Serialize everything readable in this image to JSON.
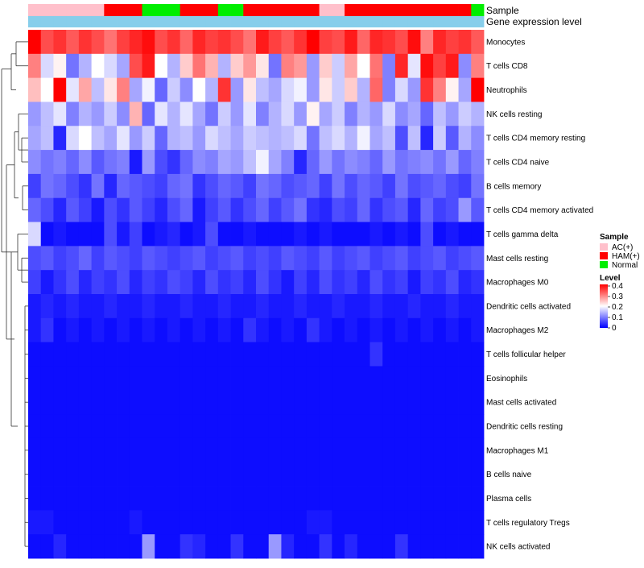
{
  "chart_data": {
    "type": "heatmap",
    "title": "",
    "annotation_tracks": [
      "Sample",
      "Gene expression level"
    ],
    "sample_groups": [
      "AC",
      "AC",
      "AC",
      "AC",
      "AC",
      "AC",
      "HAM",
      "HAM",
      "HAM",
      "Normal",
      "Normal",
      "Normal",
      "HAM",
      "HAM",
      "HAM",
      "Normal",
      "Normal",
      "HAM",
      "HAM",
      "HAM",
      "HAM",
      "HAM",
      "HAM",
      "AC",
      "AC",
      "HAM",
      "HAM",
      "HAM",
      "HAM",
      "HAM",
      "HAM",
      "HAM",
      "HAM",
      "HAM",
      "HAM",
      "Normal"
    ],
    "rows": [
      "Monocytes",
      "T cells CD8",
      "Neutrophils",
      "NK cells resting",
      "T cells CD4 memory resting",
      "T cells CD4 naive",
      "B cells memory",
      "T cells CD4 memory activated",
      "T cells gamma delta",
      "Mast cells resting",
      "Macrophages M0",
      "Dendritic cells activated",
      "Macrophages M2",
      "T cells follicular helper",
      "Eosinophils",
      "Mast cells activated",
      "Dendritic cells resting",
      "Macrophages M1",
      "B cells naive",
      "Plasma cells",
      "T cells regulatory  Tregs",
      "NK cells activated"
    ],
    "values": [
      [
        0.4,
        0.34,
        0.36,
        0.33,
        0.36,
        0.34,
        0.31,
        0.35,
        0.37,
        0.39,
        0.34,
        0.36,
        0.32,
        0.37,
        0.35,
        0.36,
        0.34,
        0.31,
        0.38,
        0.35,
        0.33,
        0.36,
        0.4,
        0.35,
        0.34,
        0.38,
        0.32,
        0.37,
        0.36,
        0.34,
        0.39,
        0.3,
        0.37,
        0.35,
        0.36,
        0.33
      ],
      [
        0.3,
        0.17,
        0.21,
        0.09,
        0.14,
        0.2,
        0.17,
        0.13,
        0.34,
        0.38,
        0.2,
        0.14,
        0.24,
        0.31,
        0.26,
        0.14,
        0.24,
        0.28,
        0.22,
        0.09,
        0.3,
        0.28,
        0.12,
        0.24,
        0.16,
        0.27,
        0.2,
        0.31,
        0.1,
        0.37,
        0.18,
        0.39,
        0.35,
        0.38,
        0.11,
        0.3
      ],
      [
        0.25,
        0.2,
        0.4,
        0.18,
        0.27,
        0.15,
        0.22,
        0.3,
        0.13,
        0.19,
        0.08,
        0.16,
        0.11,
        0.2,
        0.14,
        0.36,
        0.12,
        0.22,
        0.15,
        0.13,
        0.17,
        0.19,
        0.12,
        0.22,
        0.16,
        0.24,
        0.14,
        0.32,
        0.1,
        0.17,
        0.12,
        0.36,
        0.3,
        0.21,
        0.13,
        0.4
      ],
      [
        0.12,
        0.15,
        0.18,
        0.1,
        0.14,
        0.12,
        0.16,
        0.11,
        0.26,
        0.08,
        0.18,
        0.14,
        0.18,
        0.13,
        0.09,
        0.16,
        0.12,
        0.18,
        0.1,
        0.14,
        0.17,
        0.12,
        0.21,
        0.13,
        0.16,
        0.1,
        0.14,
        0.12,
        0.17,
        0.11,
        0.13,
        0.08,
        0.15,
        0.12,
        0.16,
        0.14
      ],
      [
        0.13,
        0.15,
        0.03,
        0.17,
        0.2,
        0.15,
        0.13,
        0.18,
        0.12,
        0.16,
        0.08,
        0.14,
        0.15,
        0.12,
        0.17,
        0.15,
        0.13,
        0.16,
        0.15,
        0.14,
        0.15,
        0.17,
        0.09,
        0.15,
        0.17,
        0.14,
        0.19,
        0.13,
        0.15,
        0.06,
        0.15,
        0.03,
        0.16,
        0.07,
        0.14,
        0.11
      ],
      [
        0.11,
        0.09,
        0.1,
        0.08,
        0.11,
        0.07,
        0.09,
        0.1,
        0.02,
        0.12,
        0.06,
        0.04,
        0.08,
        0.11,
        0.1,
        0.13,
        0.12,
        0.15,
        0.19,
        0.13,
        0.1,
        0.03,
        0.08,
        0.12,
        0.09,
        0.11,
        0.1,
        0.08,
        0.12,
        0.09,
        0.1,
        0.11,
        0.09,
        0.12,
        0.08,
        0.1
      ],
      [
        0.05,
        0.09,
        0.08,
        0.06,
        0.04,
        0.09,
        0.03,
        0.08,
        0.07,
        0.06,
        0.05,
        0.08,
        0.09,
        0.04,
        0.06,
        0.08,
        0.07,
        0.05,
        0.09,
        0.08,
        0.06,
        0.07,
        0.08,
        0.05,
        0.09,
        0.06,
        0.08,
        0.07,
        0.05,
        0.09,
        0.06,
        0.07,
        0.08,
        0.06,
        0.05,
        0.09
      ],
      [
        0.08,
        0.06,
        0.03,
        0.07,
        0.05,
        0.02,
        0.06,
        0.04,
        0.07,
        0.05,
        0.03,
        0.06,
        0.08,
        0.02,
        0.05,
        0.07,
        0.04,
        0.06,
        0.08,
        0.05,
        0.07,
        0.09,
        0.04,
        0.03,
        0.06,
        0.05,
        0.08,
        0.04,
        0.06,
        0.07,
        0.03,
        0.08,
        0.05,
        0.06,
        0.12,
        0.07
      ],
      [
        0.17,
        0.01,
        0.02,
        0.01,
        0.01,
        0.01,
        0.06,
        0.02,
        0.05,
        0.01,
        0.02,
        0.03,
        0.01,
        0.02,
        0.06,
        0.01,
        0.01,
        0.02,
        0.01,
        0.01,
        0.01,
        0.02,
        0.01,
        0.02,
        0.01,
        0.01,
        0.01,
        0.02,
        0.01,
        0.02,
        0.01,
        0.06,
        0.01,
        0.02,
        0.01,
        0.01
      ],
      [
        0.06,
        0.07,
        0.05,
        0.06,
        0.08,
        0.05,
        0.07,
        0.06,
        0.05,
        0.07,
        0.06,
        0.05,
        0.06,
        0.07,
        0.05,
        0.06,
        0.07,
        0.05,
        0.06,
        0.05,
        0.07,
        0.06,
        0.05,
        0.07,
        0.05,
        0.06,
        0.07,
        0.05,
        0.06,
        0.07,
        0.05,
        0.06,
        0.07,
        0.05,
        0.06,
        0.07
      ],
      [
        0.05,
        0.02,
        0.04,
        0.06,
        0.03,
        0.05,
        0.04,
        0.06,
        0.03,
        0.05,
        0.04,
        0.06,
        0.05,
        0.03,
        0.06,
        0.04,
        0.05,
        0.03,
        0.06,
        0.04,
        0.02,
        0.05,
        0.03,
        0.06,
        0.04,
        0.05,
        0.03,
        0.06,
        0.04,
        0.05,
        0.02,
        0.05,
        0.04,
        0.06,
        0.03,
        0.04
      ],
      [
        0.02,
        0.03,
        0.02,
        0.03,
        0.02,
        0.02,
        0.03,
        0.02,
        0.02,
        0.03,
        0.02,
        0.02,
        0.03,
        0.02,
        0.02,
        0.03,
        0.02,
        0.02,
        0.03,
        0.02,
        0.02,
        0.03,
        0.02,
        0.02,
        0.03,
        0.02,
        0.02,
        0.03,
        0.02,
        0.02,
        0.03,
        0.02,
        0.02,
        0.03,
        0.02,
        0.02
      ],
      [
        0.02,
        0.04,
        0.01,
        0.02,
        0.01,
        0.02,
        0.01,
        0.02,
        0.01,
        0.02,
        0.01,
        0.02,
        0.01,
        0.02,
        0.01,
        0.02,
        0.01,
        0.04,
        0.02,
        0.01,
        0.02,
        0.01,
        0.04,
        0.02,
        0.01,
        0.02,
        0.01,
        0.02,
        0.01,
        0.02,
        0.01,
        0.02,
        0.01,
        0.02,
        0.01,
        0.02
      ],
      [
        0.01,
        0.01,
        0.01,
        0.01,
        0.01,
        0.01,
        0.01,
        0.01,
        0.01,
        0.01,
        0.01,
        0.01,
        0.01,
        0.01,
        0.01,
        0.01,
        0.01,
        0.01,
        0.01,
        0.01,
        0.01,
        0.01,
        0.01,
        0.01,
        0.01,
        0.01,
        0.01,
        0.04,
        0.01,
        0.01,
        0.01,
        0.01,
        0.01,
        0.01,
        0.01,
        0.01
      ],
      [
        0.01,
        0.01,
        0.01,
        0.01,
        0.01,
        0.01,
        0.01,
        0.01,
        0.01,
        0.01,
        0.01,
        0.01,
        0.01,
        0.01,
        0.01,
        0.01,
        0.01,
        0.01,
        0.01,
        0.01,
        0.01,
        0.01,
        0.01,
        0.01,
        0.01,
        0.01,
        0.01,
        0.01,
        0.01,
        0.01,
        0.01,
        0.01,
        0.01,
        0.01,
        0.01,
        0.01
      ],
      [
        0.01,
        0.01,
        0.01,
        0.01,
        0.01,
        0.01,
        0.01,
        0.01,
        0.01,
        0.01,
        0.01,
        0.01,
        0.01,
        0.01,
        0.01,
        0.01,
        0.01,
        0.01,
        0.01,
        0.01,
        0.01,
        0.01,
        0.01,
        0.01,
        0.01,
        0.01,
        0.01,
        0.01,
        0.01,
        0.01,
        0.01,
        0.01,
        0.01,
        0.01,
        0.01,
        0.01
      ],
      [
        0.01,
        0.01,
        0.01,
        0.01,
        0.01,
        0.01,
        0.01,
        0.01,
        0.01,
        0.01,
        0.01,
        0.01,
        0.01,
        0.01,
        0.01,
        0.01,
        0.01,
        0.01,
        0.01,
        0.01,
        0.01,
        0.01,
        0.01,
        0.01,
        0.01,
        0.01,
        0.01,
        0.01,
        0.01,
        0.01,
        0.01,
        0.01,
        0.01,
        0.01,
        0.01,
        0.01
      ],
      [
        0.01,
        0.01,
        0.01,
        0.01,
        0.01,
        0.01,
        0.01,
        0.01,
        0.01,
        0.01,
        0.01,
        0.01,
        0.01,
        0.01,
        0.01,
        0.01,
        0.01,
        0.01,
        0.01,
        0.01,
        0.01,
        0.01,
        0.01,
        0.01,
        0.01,
        0.01,
        0.01,
        0.01,
        0.01,
        0.01,
        0.01,
        0.01,
        0.01,
        0.01,
        0.01,
        0.01
      ],
      [
        0.01,
        0.01,
        0.01,
        0.01,
        0.01,
        0.01,
        0.01,
        0.01,
        0.01,
        0.01,
        0.01,
        0.01,
        0.01,
        0.01,
        0.01,
        0.01,
        0.01,
        0.01,
        0.01,
        0.01,
        0.01,
        0.01,
        0.01,
        0.01,
        0.01,
        0.01,
        0.01,
        0.01,
        0.01,
        0.01,
        0.01,
        0.01,
        0.01,
        0.01,
        0.01,
        0.01
      ],
      [
        0.01,
        0.01,
        0.01,
        0.01,
        0.01,
        0.01,
        0.01,
        0.01,
        0.01,
        0.01,
        0.01,
        0.01,
        0.01,
        0.01,
        0.01,
        0.01,
        0.01,
        0.01,
        0.01,
        0.01,
        0.01,
        0.01,
        0.01,
        0.01,
        0.01,
        0.01,
        0.01,
        0.01,
        0.01,
        0.01,
        0.01,
        0.01,
        0.01,
        0.01,
        0.01,
        0.01
      ],
      [
        0.02,
        0.02,
        0.01,
        0.01,
        0.01,
        0.01,
        0.01,
        0.01,
        0.02,
        0.01,
        0.01,
        0.01,
        0.01,
        0.01,
        0.01,
        0.01,
        0.01,
        0.01,
        0.01,
        0.01,
        0.01,
        0.01,
        0.02,
        0.02,
        0.01,
        0.01,
        0.01,
        0.01,
        0.01,
        0.01,
        0.01,
        0.01,
        0.01,
        0.01,
        0.01,
        0.01
      ],
      [
        0.01,
        0.01,
        0.03,
        0.01,
        0.01,
        0.01,
        0.01,
        0.01,
        0.01,
        0.12,
        0.01,
        0.01,
        0.04,
        0.03,
        0.01,
        0.01,
        0.04,
        0.01,
        0.01,
        0.12,
        0.03,
        0.01,
        0.01,
        0.04,
        0.01,
        0.03,
        0.01,
        0.01,
        0.01,
        0.04,
        0.01,
        0.01,
        0.01,
        0.01,
        0.01,
        0.01
      ]
    ],
    "legend": {
      "sample_title": "Sample",
      "sample_entries": [
        {
          "label": "AC(+)",
          "color": "#ffc0cb"
        },
        {
          "label": "HAM(+)",
          "color": "#ff0000"
        },
        {
          "label": "Normal",
          "color": "#00ee00"
        }
      ],
      "level_title": "Level",
      "level_ticks": [
        "0.4",
        "0.3",
        "0.2",
        "0.1",
        "0"
      ],
      "range": [
        0,
        0.4
      ]
    },
    "colors": {
      "low": "#0000ff",
      "mid": "#ffffff",
      "high": "#ff0000",
      "expression_track": "#87ceeb",
      "dendrogram": "#333333"
    }
  }
}
